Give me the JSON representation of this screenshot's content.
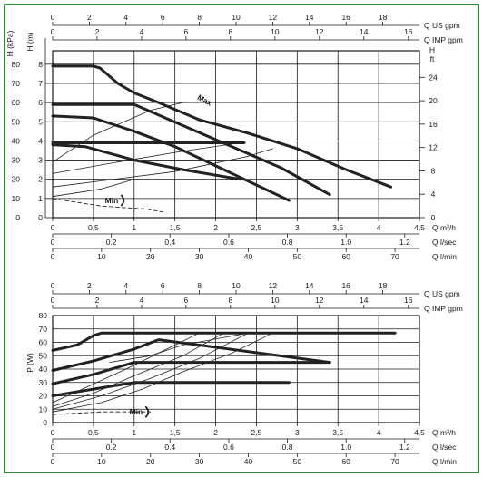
{
  "colors": {
    "frame": "#2e8b3d",
    "ink": "#1a1a1a",
    "grid": "#1a1a1a",
    "curve": "#222222"
  },
  "chart_data": [
    {
      "type": "line",
      "title": "",
      "ylabel": "H (kPa)",
      "ylabel2": "H (m)",
      "ylabel3_right": "H ft",
      "xlabel": "Q m³/h",
      "grid": true,
      "xlim": [
        0,
        4.5
      ],
      "ylim": [
        0,
        8.7
      ],
      "x_ticks": [
        "0",
        "0,5",
        "1",
        "1,5",
        "2",
        "2,5",
        "3",
        "3,5",
        "4",
        "4,5"
      ],
      "y_ticks_kpa": [
        "0",
        "10",
        "20",
        "30",
        "40",
        "50",
        "60",
        "70",
        "80"
      ],
      "y_ticks_m": [
        "0",
        "1",
        "2",
        "3",
        "4",
        "5",
        "6",
        "7",
        "8"
      ],
      "y_ticks_ft": [
        "0",
        "4",
        "8",
        "12",
        "16",
        "20",
        "24"
      ],
      "top_axes": [
        {
          "label": "Q US gpm",
          "max": 20,
          "ticks": [
            "0",
            "2",
            "4",
            "6",
            "8",
            "10",
            "12",
            "14",
            "16",
            "18"
          ]
        },
        {
          "label": "Q IMP gpm",
          "max": 16.5,
          "ticks": [
            "0",
            "2",
            "4",
            "6",
            "8",
            "10",
            "12",
            "14",
            "16"
          ]
        }
      ],
      "bottom_axes": [
        {
          "label": "Q l/sec",
          "max": 1.25,
          "ticks": [
            "0",
            "0.2",
            "0.4",
            "0.6",
            "0.8",
            "1.0",
            "1.2"
          ]
        },
        {
          "label": "Q l/min",
          "max": 75,
          "ticks": [
            "0",
            "10",
            "20",
            "30",
            "40",
            "50",
            "60",
            "70"
          ]
        }
      ],
      "annotations": {
        "max_label": "Max",
        "min_label": "Min"
      },
      "series": [
        {
          "x": [
            0,
            0.5,
            0.58,
            0.8,
            1.0,
            1.3,
            1.8,
            2.4,
            3.0,
            3.6,
            4.15
          ],
          "values": [
            7.9,
            7.9,
            7.8,
            7.0,
            6.5,
            6.0,
            5.1,
            4.4,
            3.6,
            2.5,
            1.6
          ]
        },
        {
          "x": [
            0,
            1.0,
            1.6,
            2.2,
            2.8,
            3.4
          ],
          "values": [
            5.9,
            5.9,
            4.8,
            3.7,
            2.6,
            1.2
          ]
        },
        {
          "x": [
            0,
            0.5,
            1.0,
            1.5,
            2.0,
            2.5,
            2.9
          ],
          "values": [
            5.3,
            5.2,
            4.5,
            3.7,
            2.7,
            1.7,
            0.9
          ]
        },
        {
          "x": [
            0,
            0.35,
            2.35
          ],
          "values": [
            3.9,
            3.9,
            3.9
          ]
        },
        {
          "x": [
            0,
            0.4,
            1.0,
            1.6,
            2.3
          ],
          "values": [
            3.8,
            3.7,
            3.0,
            2.5,
            2.0
          ]
        }
      ],
      "thin_lines": [
        {
          "x": [
            0,
            0.5,
            1.2,
            1.6
          ],
          "values": [
            2.9,
            4.3,
            5.6,
            6.0
          ]
        },
        {
          "x": [
            0,
            0.8,
            1.5,
            2.3
          ],
          "values": [
            2.3,
            2.9,
            3.4,
            3.9
          ]
        },
        {
          "x": [
            0,
            1.5,
            2.4,
            2.7
          ],
          "values": [
            1.6,
            2.4,
            3.2,
            3.6
          ]
        },
        {
          "x": [
            0,
            0.6,
            1.0
          ],
          "values": [
            1.1,
            1.5,
            2.0
          ]
        }
      ],
      "min_curve": {
        "x": [
          0,
          0.6,
          1.15,
          1.35
        ],
        "values": [
          1.0,
          0.6,
          0.45,
          0.3
        ]
      }
    },
    {
      "type": "line",
      "title": "",
      "ylabel": "P (W)",
      "xlabel": "Q m³/h",
      "grid": true,
      "xlim": [
        0,
        4.5
      ],
      "ylim": [
        0,
        80
      ],
      "x_ticks": [
        "0",
        "0,5",
        "1",
        "1,5",
        "2",
        "2,5",
        "3",
        "3,5",
        "4",
        "4,5"
      ],
      "y_ticks": [
        "0",
        "10",
        "20",
        "30",
        "40",
        "50",
        "60",
        "70",
        "80"
      ],
      "top_axes": [
        {
          "label": "Q US gpm",
          "max": 20,
          "ticks": [
            "0",
            "2",
            "4",
            "6",
            "8",
            "10",
            "12",
            "14",
            "16",
            "18"
          ]
        },
        {
          "label": "Q IMP gpm",
          "max": 16.5,
          "ticks": [
            "0",
            "2",
            "4",
            "6",
            "8",
            "10",
            "12",
            "14",
            "16"
          ]
        }
      ],
      "bottom_axes": [
        {
          "label": "Q l/sec",
          "max": 1.25,
          "ticks": [
            "0",
            "0.2",
            "0.4",
            "0.6",
            "0.8",
            "1.0",
            "1.2"
          ]
        },
        {
          "label": "Q l/min",
          "max": 75,
          "ticks": [
            "0",
            "10",
            "20",
            "30",
            "40",
            "50",
            "60",
            "70"
          ]
        }
      ],
      "annotations": {
        "min_label": "Min"
      },
      "series": [
        {
          "x": [
            0,
            0.3,
            0.5,
            0.6,
            0.8,
            4.2
          ],
          "values": [
            54,
            58,
            65,
            67,
            67,
            67
          ]
        },
        {
          "x": [
            0,
            0.5,
            1.0,
            1.3,
            3.4
          ],
          "values": [
            39,
            46,
            55,
            62,
            45
          ]
        },
        {
          "x": [
            0,
            0.5,
            1.0,
            3.4
          ],
          "values": [
            29,
            36,
            45,
            45
          ]
        },
        {
          "x": [
            0,
            0.5,
            1.0,
            2.9
          ],
          "values": [
            20,
            25,
            30,
            30
          ]
        }
      ],
      "thin_lines": [
        {
          "x": [
            0,
            0.6,
            1.1,
            1.6,
            2.2,
            2.7
          ],
          "values": [
            8,
            15,
            25,
            38,
            52,
            67
          ]
        },
        {
          "x": [
            0,
            0.6,
            1.2,
            1.8,
            2.4
          ],
          "values": [
            10,
            20,
            33,
            48,
            67
          ]
        },
        {
          "x": [
            0,
            0.5,
            1.0,
            1.6,
            2.1
          ],
          "values": [
            12,
            22,
            35,
            50,
            67
          ]
        },
        {
          "x": [
            0,
            0.4,
            0.9,
            1.4,
            1.8
          ],
          "values": [
            15,
            26,
            40,
            55,
            67
          ]
        },
        {
          "x": [
            0.7,
            1.2,
            1.6,
            2.4
          ],
          "values": [
            45,
            50,
            58,
            67
          ]
        }
      ],
      "min_curve": {
        "x": [
          0,
          0.6,
          1.2
        ],
        "values": [
          6,
          8,
          8
        ]
      }
    }
  ]
}
